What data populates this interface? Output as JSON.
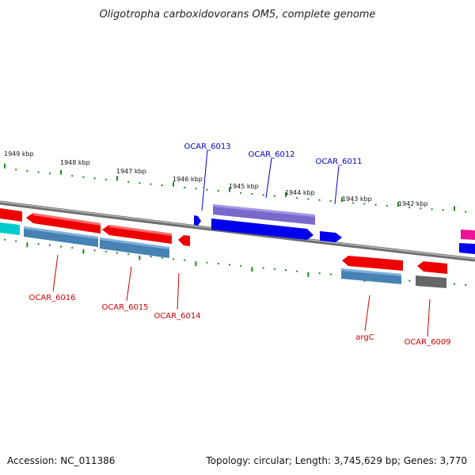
{
  "title": "Oligotropha carboxidovorans OM5, complete genome",
  "footer": {
    "accession": "Accession: NC_011386",
    "summary": "Topology: circular; Length: 3,745,629 bp; Genes: 3,770"
  },
  "scale_labels": [
    "1949 kbp",
    "1948 kbp",
    "1947 kbp",
    "1946 kbp",
    "1945 kbp",
    "1944 kbp",
    "1943 kbp",
    "1942 kbp"
  ],
  "colors": {
    "backbone": "#8c8c8c",
    "forward_gene": "#0000ee",
    "forward_label": "#0000cc",
    "reverse_gene": "#ee0000",
    "reverse_label": "#cc0000",
    "forward_feature": "#7b68cc",
    "reverse_feature": "#4682b4",
    "pseudo_feature": "#666666",
    "magenta_feature": "#ee1199",
    "cyan_feature": "#00cccc",
    "tick": "#1a8a1a"
  },
  "forward_labels": [
    "OCAR_6013",
    "OCAR_6012",
    "OCAR_6011"
  ],
  "reverse_labels": [
    "OCAR_6016",
    "OCAR_6015",
    "OCAR_6014",
    "argC",
    "OCAR_6009"
  ]
}
